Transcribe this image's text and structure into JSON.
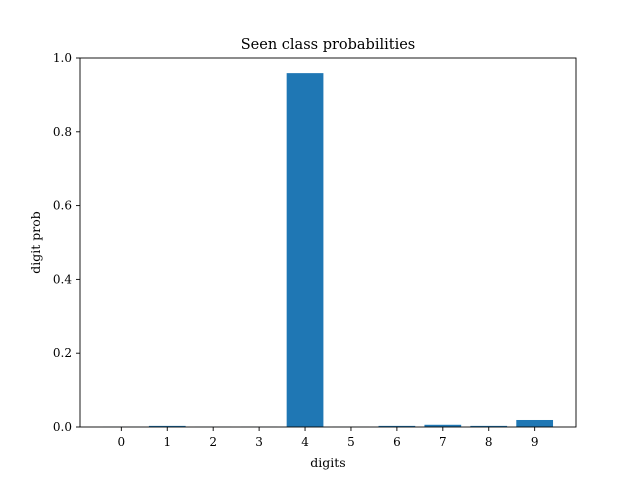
{
  "chart_data": {
    "type": "bar",
    "title": "Seen class probabilities",
    "xlabel": "digits",
    "ylabel": "digit prob",
    "categories": [
      "0",
      "1",
      "2",
      "3",
      "4",
      "5",
      "6",
      "7",
      "8",
      "9"
    ],
    "values": [
      0.0005,
      0.003,
      0.0005,
      0.0005,
      0.959,
      0.0005,
      0.003,
      0.006,
      0.003,
      0.019
    ],
    "ylim": [
      0,
      1.0
    ],
    "yticks": [
      "0.0",
      "0.2",
      "0.4",
      "0.6",
      "0.8",
      "1.0"
    ],
    "grid": false,
    "bar_color": "#1f77b4"
  }
}
